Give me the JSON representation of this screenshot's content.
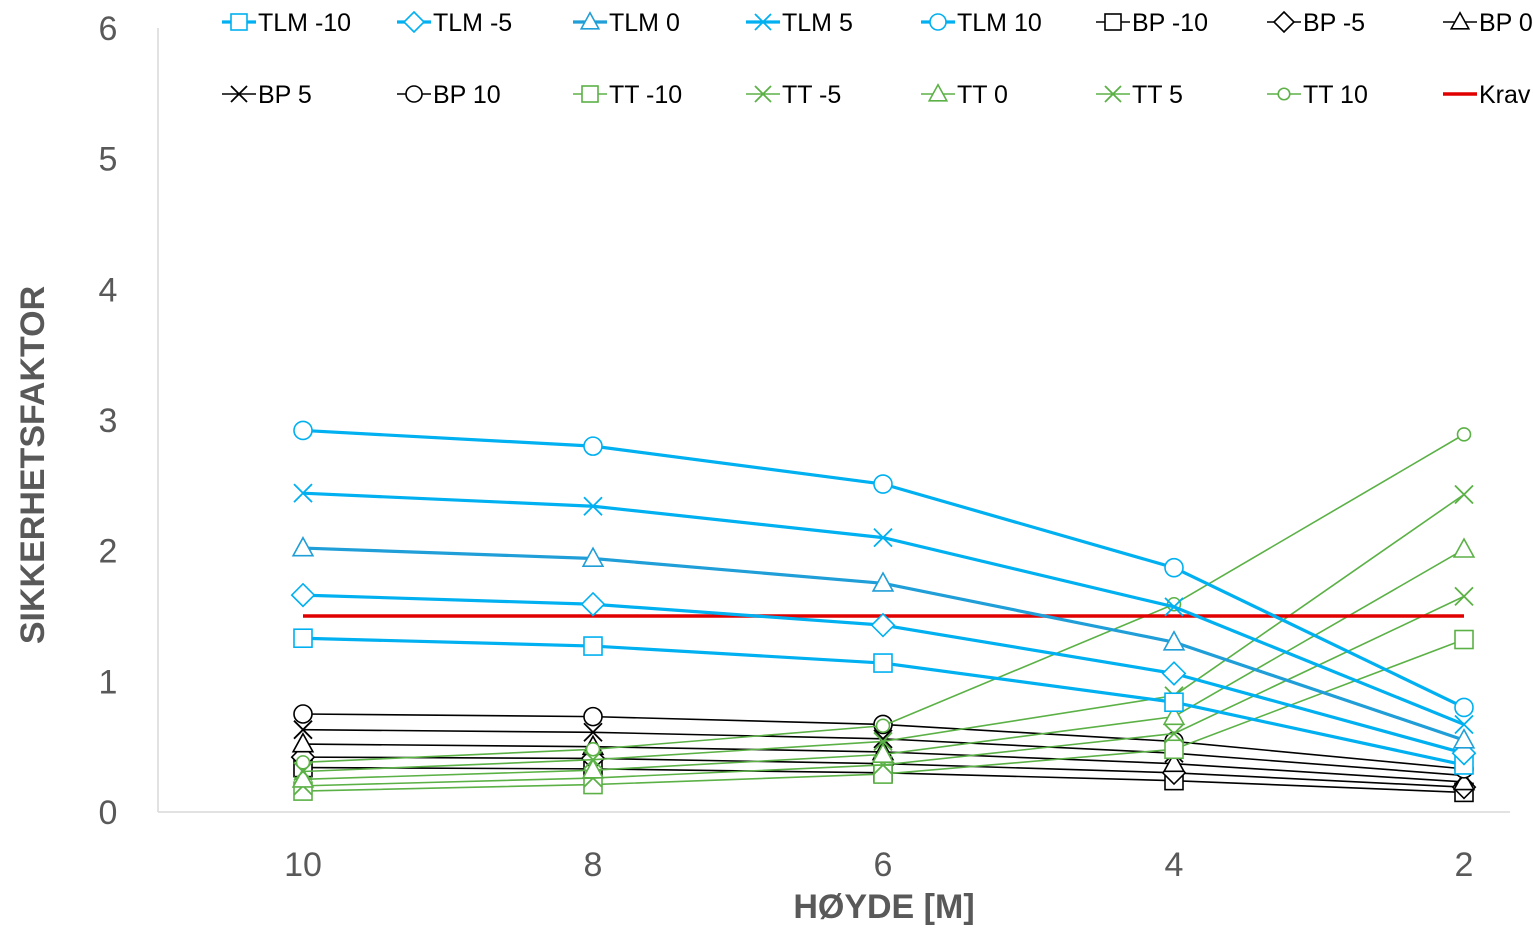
{
  "chart_data": {
    "type": "line",
    "title": "",
    "xlabel": "HØYDE [M]",
    "ylabel": "SIKKERHETSFAKTOR",
    "x": [
      10,
      8,
      6,
      4,
      2
    ],
    "x_tick_labels": [
      "10",
      "8",
      "6",
      "4",
      "2"
    ],
    "xlim_reversed": true,
    "ylim": [
      0,
      6
    ],
    "y_ticks": [
      0,
      1,
      2,
      3,
      4,
      5,
      6
    ],
    "y_tick_labels": [
      "0",
      "1",
      "2",
      "3",
      "4",
      "5",
      "6"
    ],
    "grid": false,
    "legend_position": "top",
    "series": [
      {
        "name": "TLM -10",
        "values": [
          1.33,
          1.27,
          1.14,
          0.84,
          0.36
        ],
        "color": "#00B0F0",
        "marker": "square",
        "style": "thick"
      },
      {
        "name": "TLM -5",
        "values": [
          1.66,
          1.59,
          1.43,
          1.06,
          0.45
        ],
        "color": "#00B0F0",
        "marker": "diamond",
        "style": "thick"
      },
      {
        "name": "TLM 0",
        "values": [
          2.02,
          1.94,
          1.75,
          1.3,
          0.55
        ],
        "color": "#1F9ED8",
        "marker": "triangle",
        "style": "thick"
      },
      {
        "name": "TLM 5",
        "values": [
          2.44,
          2.34,
          2.1,
          1.57,
          0.67
        ],
        "color": "#00B0F0",
        "marker": "x",
        "style": "thick"
      },
      {
        "name": "TLM 10",
        "values": [
          2.92,
          2.8,
          2.51,
          1.87,
          0.8
        ],
        "color": "#00B0F0",
        "marker": "circle",
        "style": "thick"
      },
      {
        "name": "BP -10",
        "values": [
          0.34,
          0.33,
          0.3,
          0.24,
          0.15
        ],
        "color": "#000000",
        "marker": "square",
        "style": "thin"
      },
      {
        "name": "BP -5",
        "values": [
          0.42,
          0.41,
          0.37,
          0.3,
          0.19
        ],
        "color": "#000000",
        "marker": "diamond",
        "style": "thin"
      },
      {
        "name": "BP 0",
        "values": [
          0.52,
          0.5,
          0.46,
          0.37,
          0.23
        ],
        "color": "#000000",
        "marker": "triangle",
        "style": "thin"
      },
      {
        "name": "BP 5",
        "values": [
          0.63,
          0.61,
          0.56,
          0.45,
          0.28
        ],
        "color": "#000000",
        "marker": "x",
        "style": "thin"
      },
      {
        "name": "BP 10",
        "values": [
          0.75,
          0.73,
          0.67,
          0.54,
          0.33
        ],
        "color": "#000000",
        "marker": "circle",
        "style": "thin"
      },
      {
        "name": "TT -10",
        "values": [
          0.16,
          0.21,
          0.29,
          0.48,
          1.32
        ],
        "color": "#5BB146",
        "marker": "square",
        "style": "thin"
      },
      {
        "name": "TT -5",
        "values": [
          0.2,
          0.26,
          0.36,
          0.6,
          1.65
        ],
        "color": "#5BB146",
        "marker": "x",
        "style": "thin"
      },
      {
        "name": "TT 0",
        "values": [
          0.25,
          0.32,
          0.44,
          0.73,
          2.01
        ],
        "color": "#5BB146",
        "marker": "triangle",
        "style": "thin"
      },
      {
        "name": "TT 5",
        "values": [
          0.31,
          0.4,
          0.54,
          0.89,
          2.43
        ],
        "color": "#5BB146",
        "marker": "x",
        "style": "thin"
      },
      {
        "name": "TT 10",
        "values": [
          0.38,
          0.48,
          0.66,
          1.59,
          2.89
        ],
        "color": "#5BB146",
        "marker": "circle-small",
        "style": "thin"
      },
      {
        "name": "Krav",
        "values": [
          1.5,
          1.5,
          1.5,
          1.5,
          1.5
        ],
        "color": "#E00000",
        "marker": "none",
        "style": "requirement"
      }
    ]
  }
}
